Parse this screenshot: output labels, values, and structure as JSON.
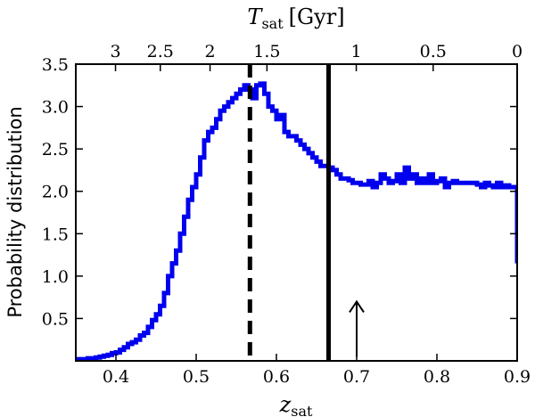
{
  "chart_data": {
    "type": "line",
    "style": "step",
    "title": "",
    "xlabel_main": "z",
    "xlabel_sub": "sat",
    "ylabel": "Probability distribution",
    "top_xlabel_main": "T",
    "top_xlabel_sub": "sat",
    "top_xlabel_unit": "[Gyr]",
    "xlim": [
      0.35,
      0.9
    ],
    "ylim": [
      0.0,
      3.5
    ],
    "grid": false,
    "legend": "none",
    "colors": {
      "series": "#0000ee",
      "axes": "#000000",
      "annotation": "#000000"
    },
    "xticks": [
      0.4,
      0.5,
      0.6,
      0.7,
      0.8,
      0.9
    ],
    "xtick_labels": [
      "0.4",
      "0.5",
      "0.6",
      "0.7",
      "0.8",
      "0.9"
    ],
    "yticks": [
      0.5,
      1.0,
      1.5,
      2.0,
      2.5,
      3.0,
      3.5
    ],
    "ytick_labels": [
      "0.5",
      "1.0",
      "1.5",
      "2.0",
      "2.5",
      "3.0",
      "3.5"
    ],
    "top_ticks": [
      {
        "z": 0.3995,
        "label": "3"
      },
      {
        "z": 0.4553,
        "label": "2.5"
      },
      {
        "z": 0.5173,
        "label": "2"
      },
      {
        "z": 0.5882,
        "label": "1.5"
      },
      {
        "z": 0.6995,
        "label": "1"
      },
      {
        "z": 0.7953,
        "label": "0.5"
      },
      {
        "z": 0.9,
        "label": "0"
      }
    ],
    "vlines": [
      {
        "x": 0.567,
        "style": "dashed",
        "name": "dashed-vline"
      },
      {
        "x": 0.665,
        "style": "solid",
        "name": "solid-vline"
      }
    ],
    "arrow": {
      "x": 0.7,
      "y_start": 0.05,
      "y_end": 0.7
    },
    "series": [
      {
        "name": "probability-distribution",
        "x": [
          0.35,
          0.355,
          0.36,
          0.365,
          0.37,
          0.375,
          0.38,
          0.385,
          0.39,
          0.395,
          0.4,
          0.405,
          0.41,
          0.415,
          0.42,
          0.425,
          0.43,
          0.435,
          0.44,
          0.445,
          0.45,
          0.455,
          0.46,
          0.465,
          0.47,
          0.475,
          0.48,
          0.485,
          0.49,
          0.495,
          0.5,
          0.505,
          0.51,
          0.515,
          0.52,
          0.525,
          0.53,
          0.535,
          0.54,
          0.545,
          0.55,
          0.555,
          0.56,
          0.565,
          0.57,
          0.575,
          0.58,
          0.585,
          0.59,
          0.595,
          0.6,
          0.605,
          0.61,
          0.615,
          0.62,
          0.625,
          0.63,
          0.635,
          0.64,
          0.645,
          0.65,
          0.655,
          0.66,
          0.665,
          0.67,
          0.675,
          0.68,
          0.685,
          0.69,
          0.695,
          0.7,
          0.705,
          0.71,
          0.715,
          0.72,
          0.725,
          0.73,
          0.735,
          0.74,
          0.745,
          0.75,
          0.755,
          0.76,
          0.765,
          0.77,
          0.775,
          0.78,
          0.785,
          0.79,
          0.795,
          0.8,
          0.805,
          0.81,
          0.815,
          0.82,
          0.825,
          0.83,
          0.835,
          0.84,
          0.845,
          0.85,
          0.855,
          0.86,
          0.865,
          0.87,
          0.875,
          0.88,
          0.885,
          0.89,
          0.895,
          0.9
        ],
        "y": [
          0.02,
          0.02,
          0.02,
          0.03,
          0.03,
          0.04,
          0.05,
          0.06,
          0.07,
          0.09,
          0.1,
          0.13,
          0.16,
          0.2,
          0.22,
          0.25,
          0.3,
          0.33,
          0.4,
          0.48,
          0.55,
          0.65,
          0.8,
          1.0,
          1.15,
          1.3,
          1.5,
          1.7,
          1.9,
          2.05,
          2.2,
          2.4,
          2.6,
          2.7,
          2.75,
          2.85,
          2.95,
          3.0,
          3.05,
          3.1,
          3.15,
          3.2,
          3.25,
          3.2,
          3.1,
          3.25,
          3.27,
          3.15,
          3.0,
          2.95,
          2.85,
          2.9,
          2.7,
          2.65,
          2.65,
          2.6,
          2.55,
          2.5,
          2.45,
          2.4,
          2.35,
          2.3,
          2.3,
          2.28,
          2.25,
          2.2,
          2.15,
          2.15,
          2.13,
          2.1,
          2.1,
          2.08,
          2.08,
          2.12,
          2.05,
          2.1,
          2.2,
          2.15,
          2.1,
          2.12,
          2.2,
          2.1,
          2.28,
          2.15,
          2.2,
          2.1,
          2.15,
          2.1,
          2.2,
          2.1,
          2.12,
          2.15,
          2.05,
          2.1,
          2.12,
          2.1,
          2.1,
          2.1,
          2.1,
          2.1,
          2.08,
          2.05,
          2.1,
          2.07,
          2.05,
          2.1,
          2.05,
          2.07,
          2.05,
          2.05,
          1.15
        ]
      }
    ]
  }
}
